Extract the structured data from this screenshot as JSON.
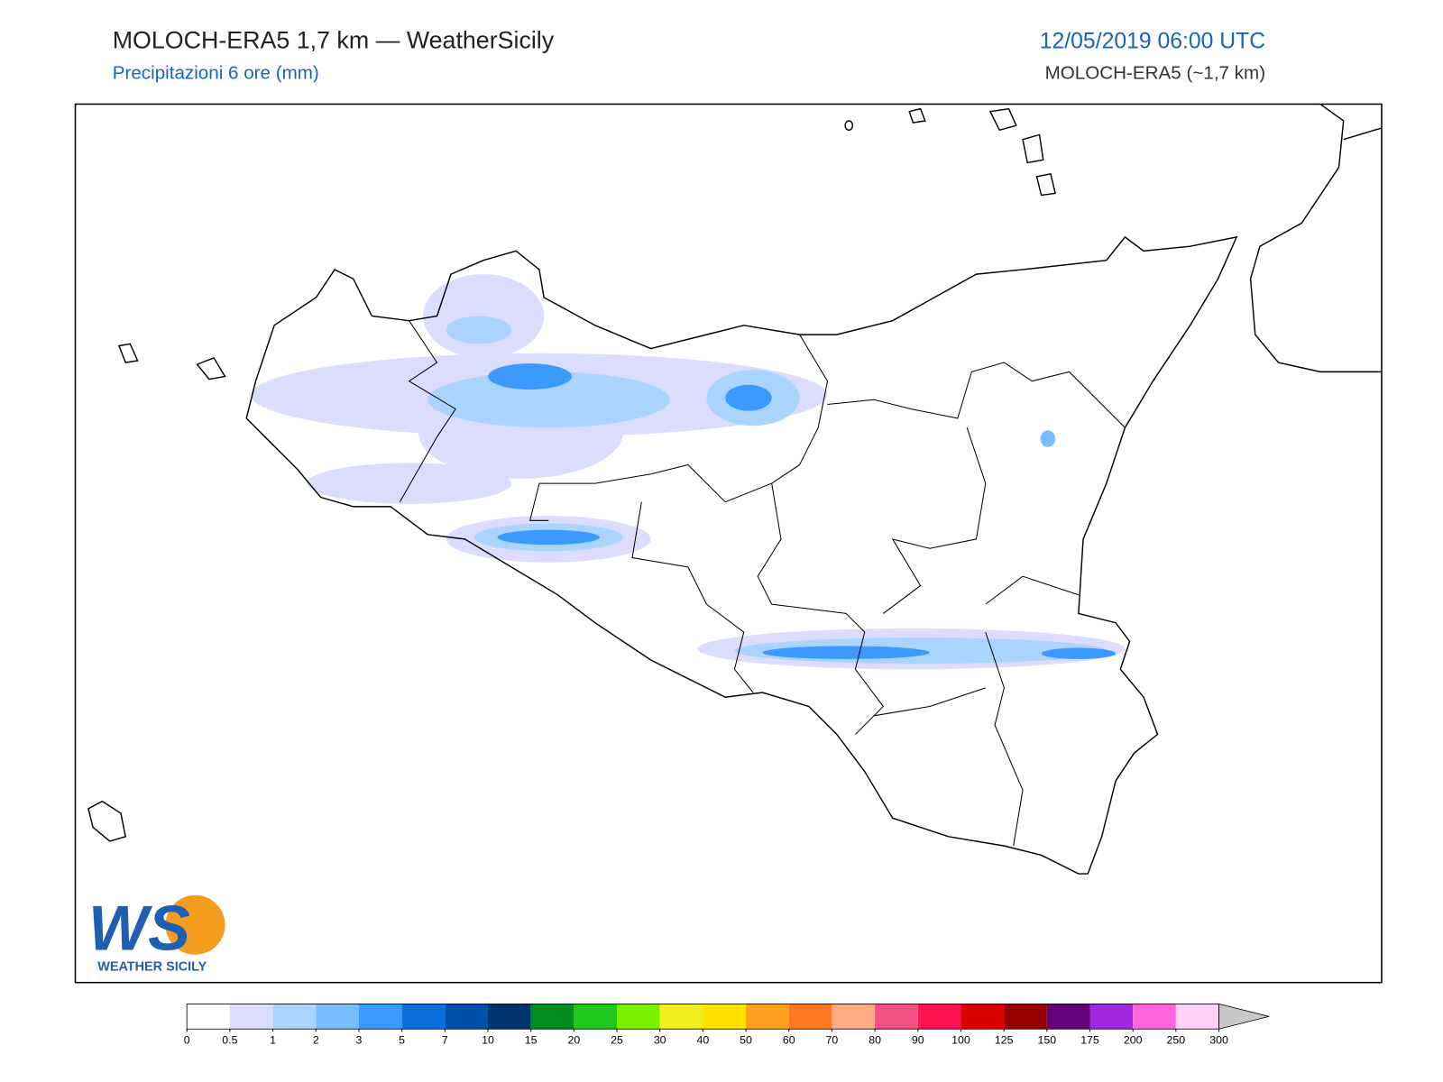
{
  "header": {
    "title": "MOLOCH-ERA5 1,7 km — WeatherSicily",
    "subtitle": "Precipitazioni 6 ore (mm)",
    "datetime": "12/05/2019 06:00 UTC",
    "model": "MOLOCH-ERA5 (~1,7 km)"
  },
  "logo": {
    "letters": "WS",
    "name": "WEATHER SICILY"
  },
  "colorbar": {
    "ticks": [
      0,
      0.5,
      1,
      2,
      3,
      5,
      7,
      10,
      15,
      20,
      25,
      30,
      40,
      50,
      60,
      70,
      80,
      90,
      100,
      125,
      150,
      175,
      200,
      250,
      300
    ],
    "colors": [
      "#ffffff",
      "#dcdcfe",
      "#aad4fe",
      "#78befe",
      "#3c9aff",
      "#0a6edc",
      "#0050aa",
      "#00326e",
      "#008c1e",
      "#1ec81e",
      "#78f000",
      "#f0f01e",
      "#ffe100",
      "#ffa01e",
      "#ff7820",
      "#ffaa82",
      "#f05082",
      "#ff1450",
      "#dc0000",
      "#960000",
      "#640078",
      "#a028dc",
      "#ff64dc",
      "#ffd2f5"
    ],
    "extend_color": "#c8c8c8"
  }
}
